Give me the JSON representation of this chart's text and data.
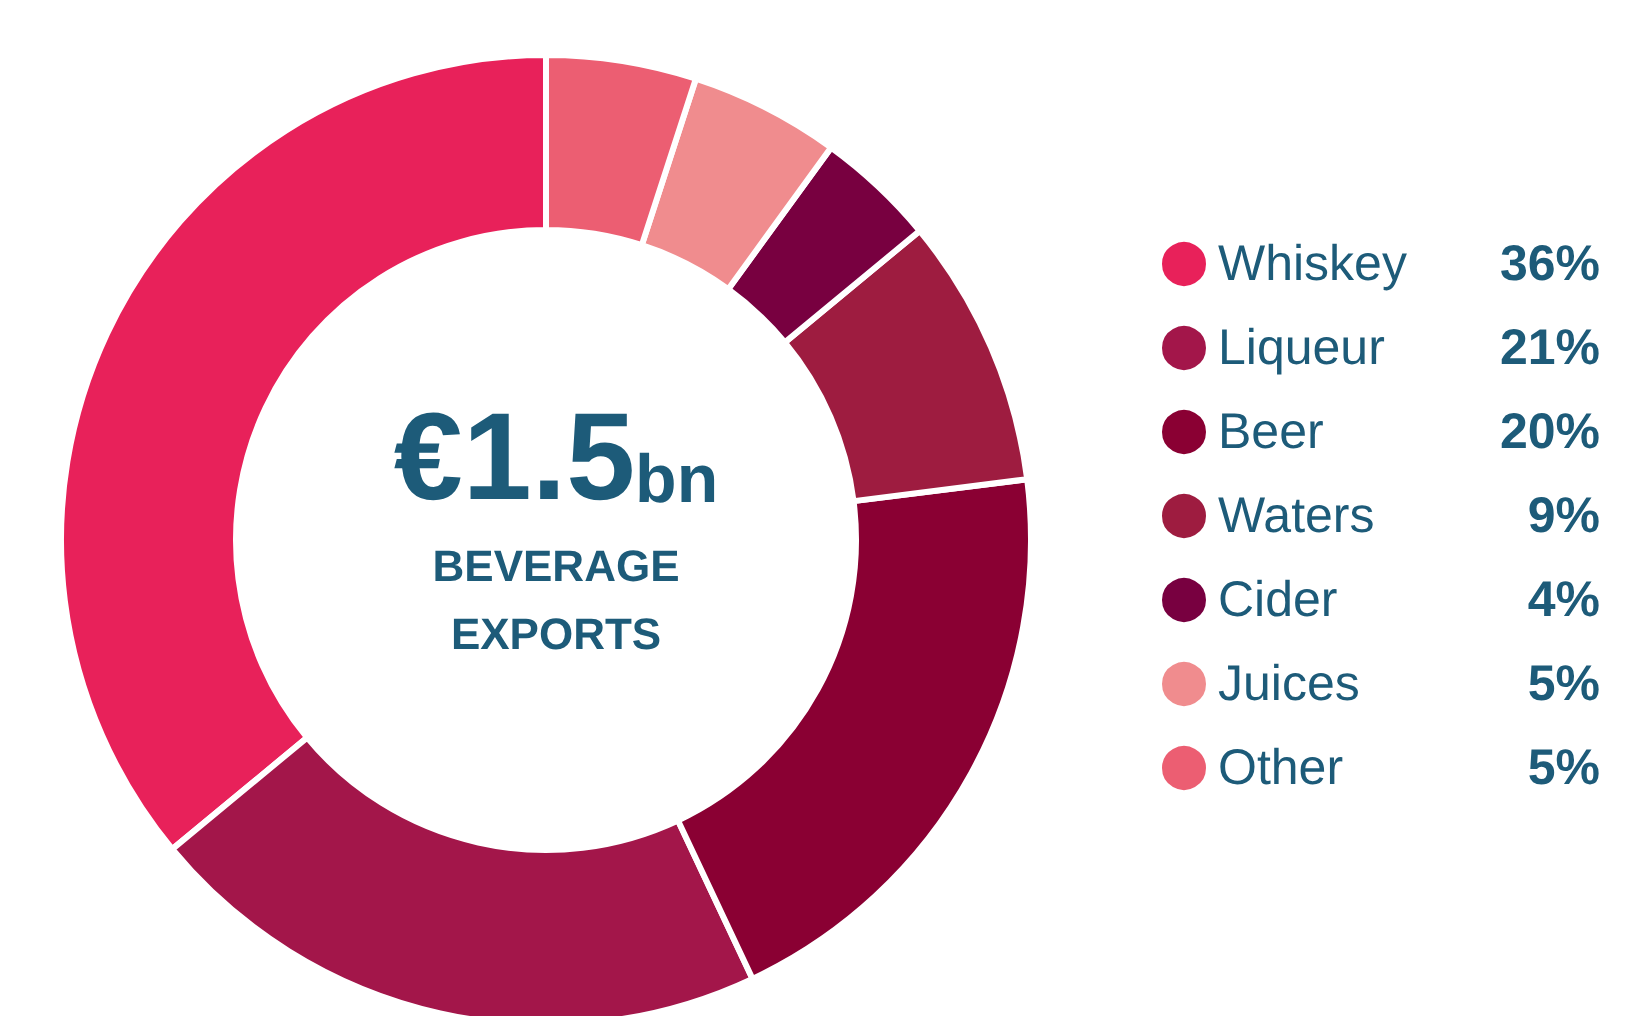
{
  "chart_data": {
    "type": "donut",
    "title": "€1.5bn",
    "subtitle": "BEVERAGE\nEXPORTS",
    "categories": [
      "Whiskey",
      "Liqueur",
      "Beer",
      "Waters",
      "Cider",
      "Juices",
      "Other"
    ],
    "values": [
      36,
      21,
      20,
      9,
      4,
      5,
      5
    ],
    "value_labels": [
      "36%",
      "21%",
      "20%",
      "9%",
      "4%",
      "5%",
      "5%"
    ],
    "colors": [
      "#e8215a",
      "#a3164a",
      "#8a0033",
      "#9e1c40",
      "#780040",
      "#f08c8e",
      "#ec5e72"
    ],
    "legend": "right"
  }
}
